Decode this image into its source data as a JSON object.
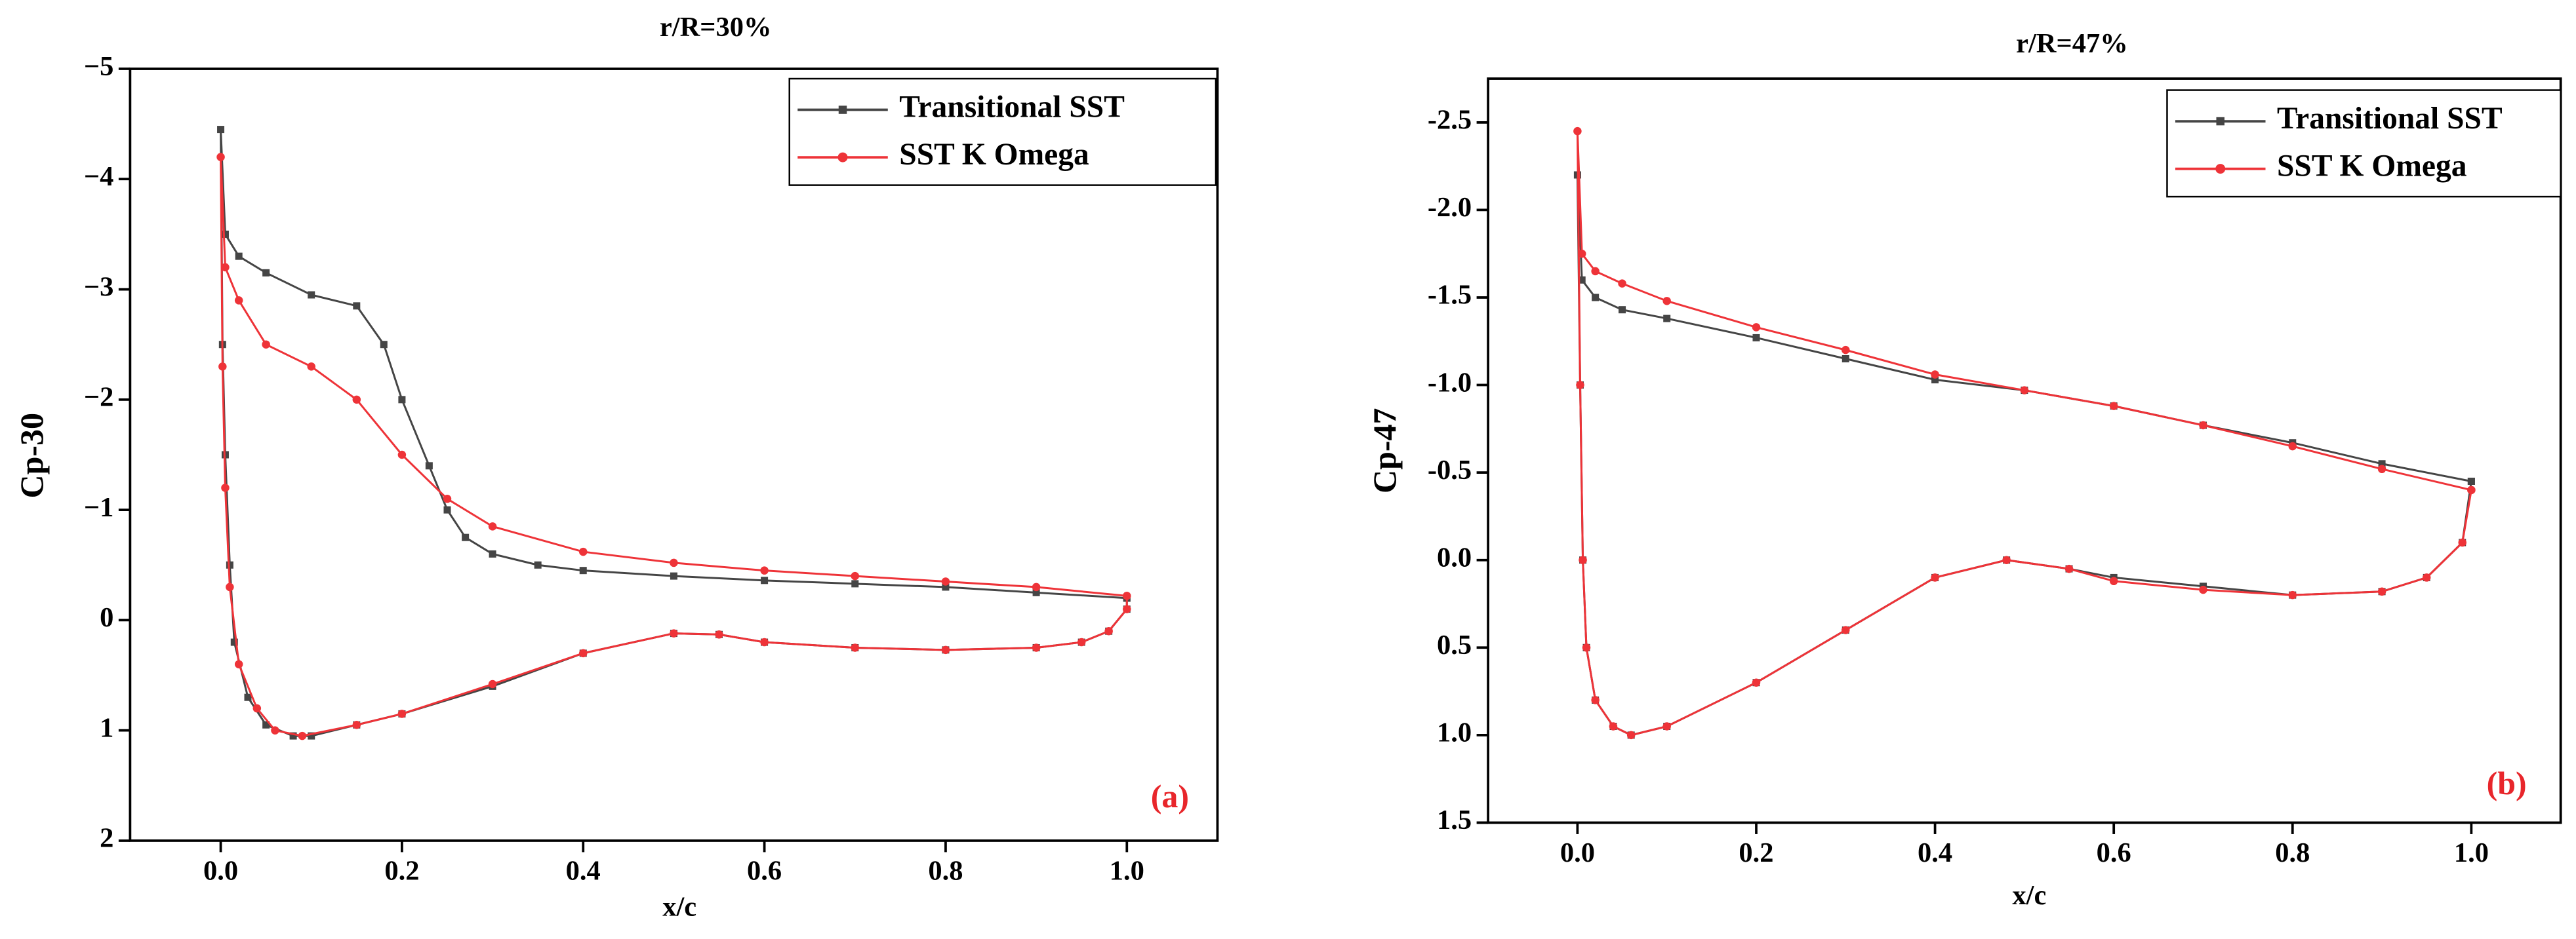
{
  "chart_data": [
    {
      "type": "line",
      "title": "r/R=30%",
      "x_label": "x/c",
      "y_label": "Cp-30",
      "annotation": "(a)",
      "annotation_color": "#e8262b",
      "xlim": [
        -0.1,
        1.1
      ],
      "xticks": [
        {
          "value": 0,
          "label": "0.0"
        },
        0.2,
        0.4,
        0.6,
        0.8,
        {
          "value": 1,
          "label": "1.0"
        }
      ],
      "ylim": [
        -5,
        2
      ],
      "y_inverted": true,
      "yticks": [
        {
          "value": -5,
          "label": "−5"
        },
        {
          "value": -4,
          "label": "−4"
        },
        {
          "value": -3,
          "label": "−3"
        },
        {
          "value": -2,
          "label": "−2"
        },
        {
          "value": -1,
          "label": "−1"
        },
        0,
        1,
        2
      ],
      "legend": "upper right",
      "series": [
        {
          "name": "Transitional SST",
          "color": "#454545",
          "marker": "square",
          "x": [
            1.0,
            0.9,
            0.8,
            0.7,
            0.6,
            0.5,
            0.4,
            0.35,
            0.3,
            0.27,
            0.25,
            0.23,
            0.2,
            0.18,
            0.15,
            0.1,
            0.05,
            0.02,
            0.005,
            0,
            0.002,
            0.005,
            0.01,
            0.015,
            0.03,
            0.05,
            0.08,
            0.1,
            0.15,
            0.2,
            0.3,
            0.4,
            0.5,
            0.55,
            0.6,
            0.7,
            0.8,
            0.9,
            0.95,
            0.98,
            1.0,
            1.0
          ],
          "values": [
            -0.2,
            -0.25,
            -0.3,
            -0.33,
            -0.36,
            -0.4,
            -0.45,
            -0.5,
            -0.6,
            -0.75,
            -1.0,
            -1.4,
            -2.0,
            -2.5,
            -2.85,
            -2.95,
            -3.15,
            -3.3,
            -3.5,
            -4.45,
            -2.5,
            -1.5,
            -0.5,
            0.2,
            0.7,
            0.95,
            1.05,
            1.05,
            0.95,
            0.85,
            0.6,
            0.3,
            0.12,
            0.13,
            0.2,
            0.25,
            0.27,
            0.25,
            0.2,
            0.1,
            -0.1,
            -0.2
          ]
        },
        {
          "name": "SST K Omega",
          "color": "#ee3338",
          "marker": "circle",
          "x": [
            1.0,
            0.9,
            0.8,
            0.7,
            0.6,
            0.5,
            0.4,
            0.3,
            0.25,
            0.2,
            0.15,
            0.1,
            0.05,
            0.02,
            0.005,
            0,
            0.002,
            0.005,
            0.01,
            0.02,
            0.04,
            0.06,
            0.09,
            0.15,
            0.2,
            0.3,
            0.4,
            0.5,
            0.55,
            0.6,
            0.7,
            0.8,
            0.9,
            0.95,
            0.98,
            1.0,
            1.0
          ],
          "values": [
            -0.22,
            -0.3,
            -0.35,
            -0.4,
            -0.45,
            -0.52,
            -0.62,
            -0.85,
            -1.1,
            -1.5,
            -2.0,
            -2.3,
            -2.5,
            -2.9,
            -3.2,
            -4.2,
            -2.3,
            -1.2,
            -0.3,
            0.4,
            0.8,
            1.0,
            1.05,
            0.95,
            0.85,
            0.58,
            0.3,
            0.12,
            0.13,
            0.2,
            0.25,
            0.27,
            0.25,
            0.2,
            0.1,
            -0.1,
            -0.22
          ]
        }
      ]
    },
    {
      "type": "line",
      "title": "r/R=47%",
      "x_label": "x/c",
      "y_label": "Cp-47",
      "annotation": "(b)",
      "annotation_color": "#e8262b",
      "xlim": [
        -0.1,
        1.1
      ],
      "xticks": [
        {
          "value": 0,
          "label": "0.0"
        },
        0.2,
        0.4,
        0.6,
        0.8,
        {
          "value": 1,
          "label": "1.0"
        }
      ],
      "ylim": [
        -2.75,
        1.5
      ],
      "y_inverted": true,
      "yticks": [
        -2.5,
        {
          "value": -2,
          "label": "-2.0"
        },
        -1.5,
        {
          "value": -1,
          "label": "-1.0"
        },
        -0.5,
        {
          "value": 0,
          "label": "0.0"
        },
        0.5,
        {
          "value": 1,
          "label": "1.0"
        },
        1.5
      ],
      "legend": "upper right",
      "series": [
        {
          "name": "Transitional SST",
          "color": "#454545",
          "marker": "square",
          "x": [
            1.0,
            0.9,
            0.8,
            0.7,
            0.6,
            0.5,
            0.4,
            0.3,
            0.2,
            0.1,
            0.05,
            0.02,
            0.005,
            0,
            0.003,
            0.006,
            0.01,
            0.02,
            0.04,
            0.06,
            0.1,
            0.2,
            0.3,
            0.4,
            0.48,
            0.55,
            0.6,
            0.7,
            0.8,
            0.9,
            0.95,
            0.99,
            1.0
          ],
          "values": [
            -0.45,
            -0.55,
            -0.67,
            -0.77,
            -0.88,
            -0.97,
            -1.03,
            -1.15,
            -1.27,
            -1.38,
            -1.43,
            -1.5,
            -1.6,
            -2.2,
            -1.0,
            0,
            0.5,
            0.8,
            0.95,
            1.0,
            0.95,
            0.7,
            0.4,
            0.1,
            0.0,
            0.05,
            0.1,
            0.15,
            0.2,
            0.18,
            0.1,
            -0.1,
            -0.45
          ]
        },
        {
          "name": "SST K Omega",
          "color": "#ee3338",
          "marker": "circle",
          "x": [
            1.0,
            0.9,
            0.8,
            0.7,
            0.6,
            0.5,
            0.4,
            0.3,
            0.2,
            0.1,
            0.05,
            0.02,
            0.005,
            0,
            0.003,
            0.006,
            0.01,
            0.02,
            0.04,
            0.06,
            0.1,
            0.2,
            0.3,
            0.4,
            0.48,
            0.55,
            0.6,
            0.7,
            0.8,
            0.9,
            0.95,
            0.99,
            1.0
          ],
          "values": [
            -0.4,
            -0.52,
            -0.65,
            -0.77,
            -0.88,
            -0.97,
            -1.06,
            -1.2,
            -1.33,
            -1.48,
            -1.58,
            -1.65,
            -1.75,
            -2.45,
            -1.0,
            0,
            0.5,
            0.8,
            0.95,
            1.0,
            0.95,
            0.7,
            0.4,
            0.1,
            0.0,
            0.05,
            0.12,
            0.17,
            0.2,
            0.18,
            0.1,
            -0.1,
            -0.4
          ]
        }
      ]
    }
  ]
}
